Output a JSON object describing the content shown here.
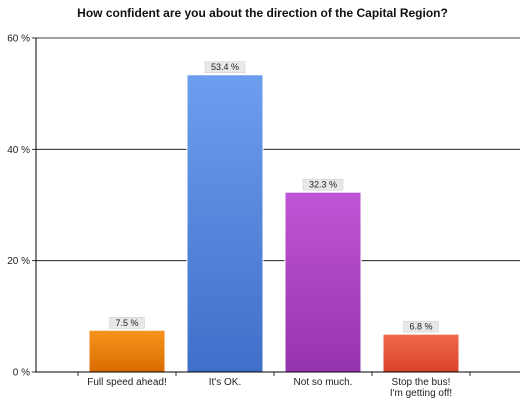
{
  "chart_data": {
    "type": "bar",
    "title": "How confident are you about the direction of the Capital Region?",
    "xlabel": "",
    "ylabel": "",
    "ylim": [
      0,
      60
    ],
    "yticks": [
      0,
      20,
      40,
      60
    ],
    "ytick_suffix": " %",
    "grid": true,
    "categories": [
      [
        "Full speed ahead!"
      ],
      [
        "It's OK."
      ],
      [
        "Not so much."
      ],
      [
        "Stop the bus!",
        "I'm getting off!"
      ]
    ],
    "values": [
      7.5,
      53.4,
      32.3,
      6.8
    ],
    "data_labels": [
      "7.5 %",
      "53.4 %",
      "32.3 %",
      "6.8 %"
    ],
    "colors": [
      [
        "#f7941d",
        "#d96c00"
      ],
      [
        "#6d9eee",
        "#3f6fc9"
      ],
      [
        "#c055d6",
        "#9634ad"
      ],
      [
        "#f26a4a",
        "#d9432a"
      ]
    ]
  }
}
